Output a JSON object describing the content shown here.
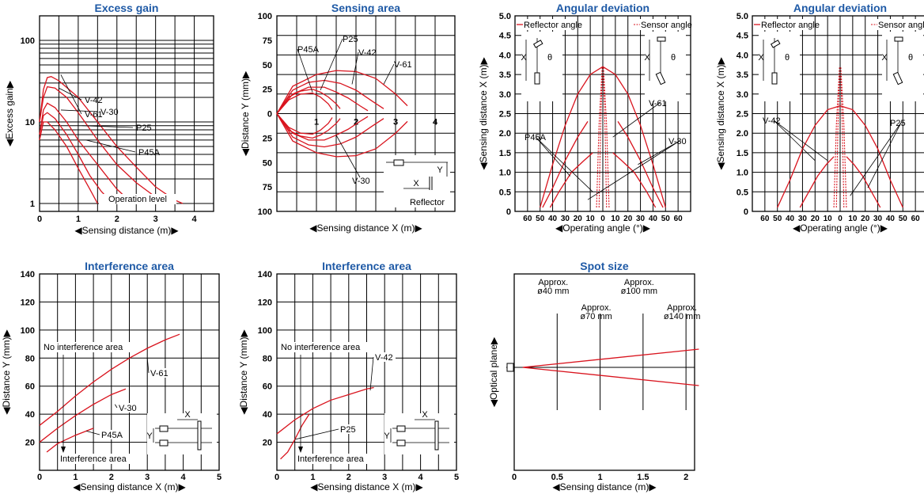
{
  "chart_data": [
    {
      "id": "excess_gain",
      "type": "line",
      "title": "Excess gain",
      "xlabel": "◀Sensing distance (m)▶",
      "ylabel": "◀Excess gain▶",
      "xlim": [
        0,
        4.5
      ],
      "ylim": [
        0.8,
        200
      ],
      "yscale": "log",
      "xticks": [
        "0",
        "1",
        "2",
        "3",
        "4"
      ],
      "yticks": [
        "1",
        "10",
        "100"
      ],
      "annotation": "Operation level",
      "series": [
        {
          "name": "V-61",
          "x": [
            0,
            0.1,
            0.2,
            0.3,
            0.5,
            1,
            1.5,
            2,
            2.5,
            3,
            3.5,
            3.7
          ],
          "y": [
            10,
            25,
            35,
            36,
            32,
            20,
            10,
            5,
            2.8,
            1.6,
            1.1,
            1
          ]
        },
        {
          "name": "V-42",
          "x": [
            0,
            0.1,
            0.2,
            0.4,
            0.7,
            1,
            1.5,
            2,
            2.5,
            3,
            3.2
          ],
          "y": [
            10,
            20,
            27,
            26,
            20,
            13,
            6,
            3,
            1.8,
            1.2,
            1
          ]
        },
        {
          "name": "V-30",
          "x": [
            0,
            0.1,
            0.2,
            0.4,
            0.7,
            1,
            1.5,
            2,
            2.4
          ],
          "y": [
            7,
            14,
            17,
            15,
            10,
            6,
            3,
            1.5,
            1
          ]
        },
        {
          "name": "P25",
          "x": [
            0,
            0.1,
            0.2,
            0.4,
            0.7,
            1,
            1.3,
            1.6,
            1.9
          ],
          "y": [
            7,
            12,
            13,
            11,
            7,
            4,
            2.2,
            1.4,
            1
          ]
        },
        {
          "name": "P45A",
          "x": [
            0,
            0.1,
            0.2,
            0.4,
            0.7,
            1,
            1.3,
            1.5
          ],
          "y": [
            6,
            10,
            10,
            8,
            5,
            2.7,
            1.5,
            1
          ]
        }
      ]
    },
    {
      "id": "sensing_area",
      "type": "line",
      "title": "Sensing area",
      "xlabel": "◀Sensing distance X (m)▶",
      "ylabel": "◀Distance Y (mm)▶",
      "xlim": [
        0,
        4.5
      ],
      "ylim": [
        -100,
        100
      ],
      "xticks": [
        "1",
        "2",
        "3",
        "4"
      ],
      "yticks": [
        "100",
        "75",
        "50",
        "25",
        "0",
        "25",
        "50",
        "75",
        "100"
      ],
      "diagram_labels": [
        "X",
        "Y",
        "Reflector"
      ],
      "series": [
        {
          "name": "V-61",
          "x": [
            0,
            0.4,
            1,
            1.5,
            2,
            2.5,
            3,
            3.3
          ],
          "y": [
            0,
            28,
            40,
            44,
            43,
            36,
            20,
            8
          ]
        },
        {
          "name": "V-42",
          "x": [
            0,
            0.4,
            0.8,
            1.2,
            1.6,
            2,
            2.4,
            2.7
          ],
          "y": [
            0,
            24,
            32,
            34,
            31,
            24,
            13,
            5
          ]
        },
        {
          "name": "V-30",
          "x": [
            0,
            0.4,
            0.8,
            1.2,
            1.5,
            1.8,
            2.1,
            2.3
          ],
          "y": [
            0,
            20,
            27,
            27,
            22,
            16,
            8,
            3
          ]
        },
        {
          "name": "P25",
          "x": [
            0,
            0.3,
            0.6,
            0.9,
            1.1,
            1.3,
            1.5,
            1.6
          ],
          "y": [
            0,
            17,
            23,
            25,
            22,
            17,
            10,
            5
          ]
        },
        {
          "name": "P45A",
          "x": [
            0,
            0.3,
            0.6,
            0.9,
            1.1,
            1.3,
            1.4
          ],
          "y": [
            0,
            14,
            20,
            21,
            17,
            10,
            4
          ]
        }
      ]
    },
    {
      "id": "angular_deviation_1",
      "type": "line",
      "title": "Angular deviation",
      "xlabel": "◀Operating angle (°)▶",
      "ylabel": "◀Sensing distance X (m)▶",
      "xlim": [
        -70,
        70
      ],
      "ylim": [
        0,
        5
      ],
      "xticks": [
        "60",
        "50",
        "40",
        "30",
        "20",
        "10",
        "0",
        "10",
        "20",
        "30",
        "40",
        "50",
        "60"
      ],
      "yticks": [
        "0",
        "0.5",
        "1.0",
        "1.5",
        "2.0",
        "2.5",
        "3.0",
        "3.5",
        "4.0",
        "4.5",
        "5.0"
      ],
      "legend": [
        "Reflector angle",
        "Sensor angle"
      ],
      "diagram_labels": [
        "X",
        "θ",
        "X",
        "θ"
      ],
      "series": [
        {
          "name": "V-61",
          "x": [
            -50,
            -40,
            -30,
            -20,
            -10,
            0
          ],
          "y": [
            0.1,
            1.2,
            2.2,
            3.0,
            3.5,
            3.7
          ]
        },
        {
          "name": "V-30",
          "x": [
            -48,
            -40,
            -30,
            -20,
            -12
          ],
          "y": [
            0.1,
            0.6,
            1.3,
            1.9,
            2.3
          ]
        },
        {
          "name": "P45A",
          "x": [
            -42,
            -35,
            -25,
            -15,
            -8
          ],
          "y": [
            0.1,
            0.5,
            1.0,
            1.3,
            1.5
          ]
        }
      ]
    },
    {
      "id": "angular_deviation_2",
      "type": "line",
      "title": "Angular deviation",
      "xlabel": "◀Operating angle (°)▶",
      "ylabel": "◀Sensing distance X (m)▶",
      "xlim": [
        -70,
        70
      ],
      "ylim": [
        0,
        5
      ],
      "xticks": [
        "60",
        "50",
        "40",
        "30",
        "20",
        "10",
        "0",
        "10",
        "20",
        "30",
        "40",
        "50",
        "60"
      ],
      "yticks": [
        "0",
        "0.5",
        "1.0",
        "1.5",
        "2.0",
        "2.5",
        "3.0",
        "3.5",
        "4.0",
        "4.5",
        "5.0"
      ],
      "legend": [
        "Reflector angle",
        "Sensor angle"
      ],
      "diagram_labels": [
        "X",
        "θ",
        "X",
        "θ"
      ],
      "series": [
        {
          "name": "V-42",
          "x": [
            -50,
            -40,
            -30,
            -20,
            -10,
            0
          ],
          "y": [
            0.1,
            0.8,
            1.6,
            2.2,
            2.6,
            2.7
          ]
        },
        {
          "name": "P25",
          "x": [
            -32,
            -25,
            -18,
            -11,
            -5
          ],
          "y": [
            0.1,
            0.5,
            0.9,
            1.2,
            1.4
          ]
        }
      ]
    },
    {
      "id": "interference_area_1",
      "type": "line",
      "title": "Interference area",
      "xlabel": "◀Sensing distance X (m)▶",
      "ylabel": "◀Distance Y (mm)▶",
      "xlim": [
        0,
        5
      ],
      "ylim": [
        0,
        140
      ],
      "xticks": [
        "0",
        "1",
        "2",
        "3",
        "4",
        "5"
      ],
      "yticks": [
        "20",
        "40",
        "60",
        "80",
        "100",
        "120",
        "140"
      ],
      "annotations": [
        "No interference area",
        "Interference area"
      ],
      "diagram_labels": [
        "X",
        "Y"
      ],
      "series": [
        {
          "name": "V-61",
          "x": [
            0,
            0.5,
            1,
            1.5,
            2,
            2.5,
            3,
            3.5,
            3.9
          ],
          "y": [
            32,
            42,
            53,
            63,
            72,
            80,
            87,
            93,
            97
          ]
        },
        {
          "name": "V-30",
          "x": [
            0,
            0.5,
            1,
            1.5,
            2,
            2.4
          ],
          "y": [
            20,
            30,
            39,
            47,
            54,
            58
          ]
        },
        {
          "name": "P45A",
          "x": [
            0.2,
            0.5,
            1,
            1.5
          ],
          "y": [
            13,
            19,
            25,
            30
          ]
        }
      ]
    },
    {
      "id": "interference_area_2",
      "type": "line",
      "title": "Interference area",
      "xlabel": "◀Sensing distance X (m)▶",
      "ylabel": "◀Distance Y (mm)▶",
      "xlim": [
        0,
        5
      ],
      "ylim": [
        0,
        140
      ],
      "xticks": [
        "0",
        "1",
        "2",
        "3",
        "4",
        "5"
      ],
      "yticks": [
        "20",
        "40",
        "60",
        "80",
        "100",
        "120",
        "140"
      ],
      "annotations": [
        "No interference area",
        "Interference area"
      ],
      "diagram_labels": [
        "X",
        "Y"
      ],
      "series": [
        {
          "name": "V-42",
          "x": [
            0,
            0.5,
            1,
            1.5,
            2,
            2.5,
            2.7
          ],
          "y": [
            26,
            36,
            44,
            50,
            54,
            58,
            59
          ]
        },
        {
          "name": "P25",
          "x": [
            0.1,
            0.3,
            0.5,
            0.7,
            0.9
          ],
          "y": [
            8,
            13,
            22,
            32,
            40
          ]
        }
      ]
    },
    {
      "id": "spot_size",
      "type": "line",
      "title": "Spot size",
      "xlabel": "◀Sensing distance (m)▶",
      "ylabel": "◀Optical plane▶",
      "xlim": [
        0,
        2.1
      ],
      "xticks": [
        "0",
        "0.5",
        "1",
        "1.5",
        "2"
      ],
      "annotations": [
        "Approx.",
        "ø40 mm",
        "Approx.",
        "ø70 mm",
        "Approx.",
        "ø100 mm",
        "Approx.",
        "ø140 mm"
      ],
      "series": [
        {
          "name": "",
          "x": [
            0.1,
            2.15
          ],
          "y": [
            0,
            0.5
          ]
        },
        {
          "name": "",
          "x": [
            0.1,
            2.15
          ],
          "y": [
            0,
            -0.5
          ]
        }
      ]
    }
  ]
}
